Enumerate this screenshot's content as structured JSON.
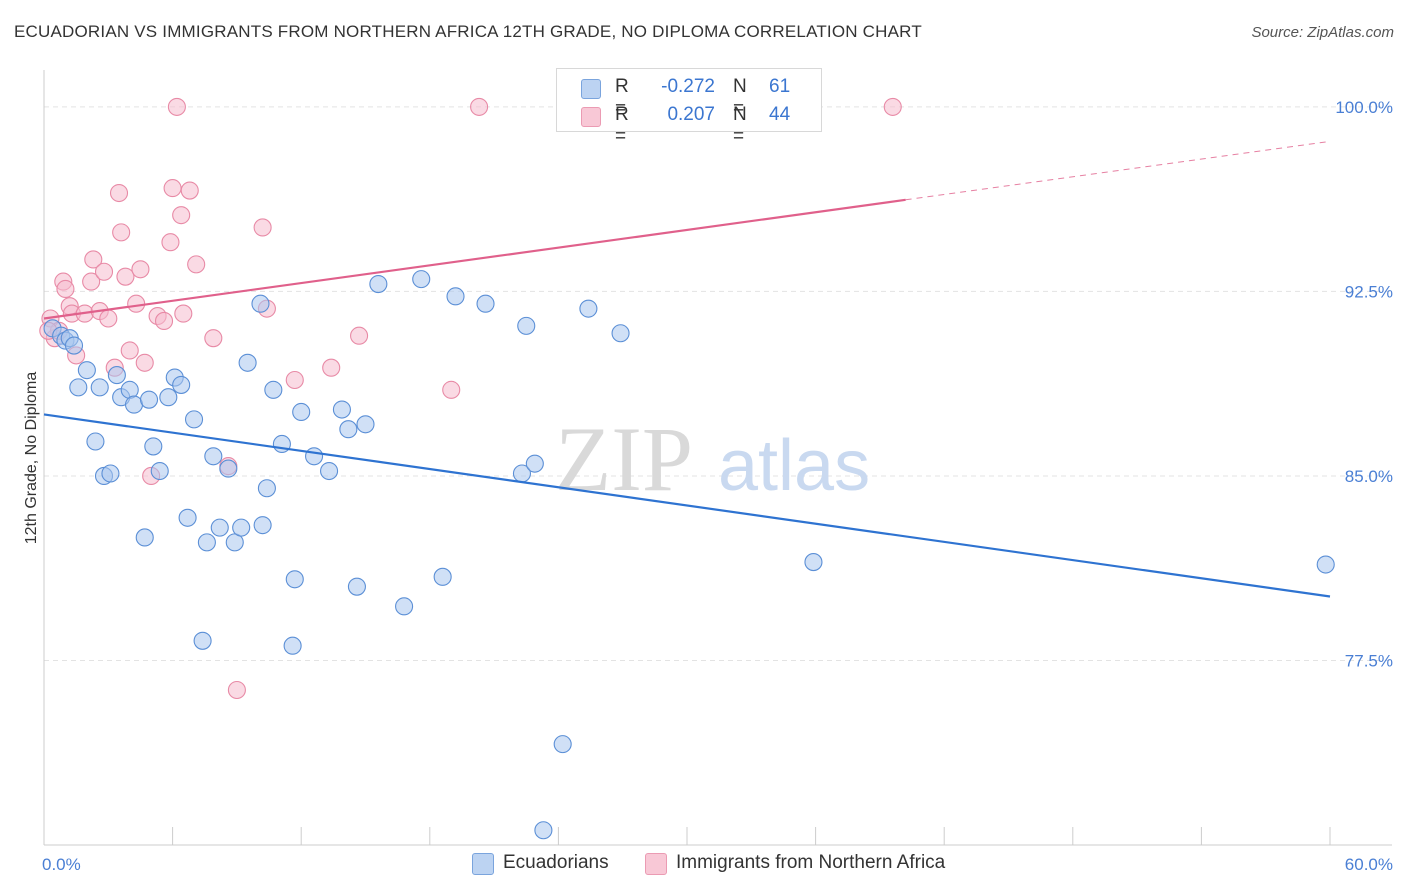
{
  "header": {
    "title": "ECUADORIAN VS IMMIGRANTS FROM NORTHERN AFRICA 12TH GRADE, NO DIPLOMA CORRELATION CHART",
    "source": "Source: ZipAtlas.com"
  },
  "legend": {
    "row1": {
      "r_label": "R =",
      "r_value": "-0.272",
      "n_label": "N =",
      "n_value": "61"
    },
    "row2": {
      "r_label": "R =",
      "r_value": "0.207",
      "n_label": "N =",
      "n_value": "44"
    }
  },
  "bottom_legend": {
    "series1": "Ecuadorians",
    "series2": "Immigrants from Northern Africa"
  },
  "watermark": {
    "zip": "ZIP",
    "atlas": "atlas"
  },
  "colors": {
    "blue_fill": "#a9c6ee",
    "blue_stroke": "#5b8fd6",
    "blue_line": "#2e73d1",
    "pink_fill": "#f6bccd",
    "pink_stroke": "#e88aa6",
    "pink_line": "#e0608b",
    "tick_text": "#4a7fd4"
  },
  "chart_data": {
    "type": "scatter",
    "title": "ECUADORIAN VS IMMIGRANTS FROM NORTHERN AFRICA 12TH GRADE, NO DIPLOMA CORRELATION CHART",
    "xlabel": "",
    "ylabel": "12th Grade, No Diploma",
    "xlim": [
      0,
      60
    ],
    "ylim": [
      70.0,
      101.5
    ],
    "x_tick_labels": {
      "left": "0.0%",
      "right": "60.0%"
    },
    "y_ticks": [
      100.0,
      92.5,
      85.0,
      77.5
    ],
    "y_tick_labels": [
      "100.0%",
      "92.5%",
      "85.0%",
      "77.5%"
    ],
    "grid": true,
    "series": [
      {
        "name": "Ecuadorians",
        "color": "#a9c6ee",
        "R": -0.272,
        "N": 61,
        "trend": {
          "x": [
            0,
            60
          ],
          "y": [
            87.5,
            80.1
          ],
          "dashed_from": null
        },
        "points": [
          [
            0.4,
            91.0
          ],
          [
            0.8,
            90.7
          ],
          [
            1.0,
            90.5
          ],
          [
            1.2,
            90.6
          ],
          [
            1.4,
            90.3
          ],
          [
            1.6,
            88.6
          ],
          [
            2.0,
            89.3
          ],
          [
            2.4,
            86.4
          ],
          [
            2.6,
            88.6
          ],
          [
            2.8,
            85.0
          ],
          [
            3.1,
            85.1
          ],
          [
            3.4,
            89.1
          ],
          [
            3.6,
            88.2
          ],
          [
            4.0,
            88.5
          ],
          [
            4.2,
            87.9
          ],
          [
            4.7,
            82.5
          ],
          [
            4.9,
            88.1
          ],
          [
            5.1,
            86.2
          ],
          [
            5.4,
            85.2
          ],
          [
            5.8,
            88.2
          ],
          [
            6.1,
            89.0
          ],
          [
            6.4,
            88.7
          ],
          [
            6.7,
            83.3
          ],
          [
            7.0,
            87.3
          ],
          [
            7.4,
            78.3
          ],
          [
            7.6,
            82.3
          ],
          [
            7.9,
            85.8
          ],
          [
            8.2,
            82.9
          ],
          [
            8.6,
            85.3
          ],
          [
            8.9,
            82.3
          ],
          [
            9.2,
            82.9
          ],
          [
            9.5,
            89.6
          ],
          [
            10.1,
            92.0
          ],
          [
            10.2,
            83.0
          ],
          [
            10.4,
            84.5
          ],
          [
            10.7,
            88.5
          ],
          [
            11.1,
            86.3
          ],
          [
            11.6,
            78.1
          ],
          [
            11.7,
            80.8
          ],
          [
            12.0,
            87.6
          ],
          [
            12.6,
            85.8
          ],
          [
            13.3,
            85.2
          ],
          [
            13.9,
            87.7
          ],
          [
            14.2,
            86.9
          ],
          [
            14.6,
            80.5
          ],
          [
            15.0,
            87.1
          ],
          [
            15.6,
            92.8
          ],
          [
            16.8,
            79.7
          ],
          [
            17.6,
            93.0
          ],
          [
            18.6,
            80.9
          ],
          [
            19.2,
            92.3
          ],
          [
            20.6,
            92.0
          ],
          [
            22.3,
            85.1
          ],
          [
            22.5,
            91.1
          ],
          [
            22.9,
            85.5
          ],
          [
            23.3,
            70.6
          ],
          [
            24.2,
            74.1
          ],
          [
            25.4,
            91.8
          ],
          [
            26.9,
            90.8
          ],
          [
            35.9,
            81.5
          ],
          [
            59.8,
            81.4
          ]
        ]
      },
      {
        "name": "Immigrants from Northern Africa",
        "color": "#f6bccd",
        "R": 0.207,
        "N": 44,
        "trend": {
          "x": [
            0,
            60
          ],
          "y": [
            91.4,
            98.6
          ],
          "solid_until_x": 40.2
        },
        "points": [
          [
            0.3,
            91.4
          ],
          [
            0.5,
            90.6
          ],
          [
            0.7,
            90.9
          ],
          [
            0.9,
            92.9
          ],
          [
            1.0,
            92.6
          ],
          [
            1.2,
            91.9
          ],
          [
            1.3,
            91.6
          ],
          [
            1.5,
            89.9
          ],
          [
            1.9,
            91.6
          ],
          [
            2.2,
            92.9
          ],
          [
            2.3,
            93.8
          ],
          [
            2.6,
            91.7
          ],
          [
            2.8,
            93.3
          ],
          [
            3.0,
            91.4
          ],
          [
            3.3,
            89.4
          ],
          [
            3.5,
            96.5
          ],
          [
            3.6,
            94.9
          ],
          [
            3.8,
            93.1
          ],
          [
            4.0,
            90.1
          ],
          [
            4.3,
            92.0
          ],
          [
            4.5,
            93.4
          ],
          [
            4.7,
            89.6
          ],
          [
            5.0,
            85.0
          ],
          [
            5.3,
            91.5
          ],
          [
            5.6,
            91.3
          ],
          [
            5.9,
            94.5
          ],
          [
            6.0,
            96.7
          ],
          [
            6.2,
            100.0
          ],
          [
            6.4,
            95.6
          ],
          [
            6.5,
            91.6
          ],
          [
            6.8,
            96.6
          ],
          [
            7.1,
            93.6
          ],
          [
            7.9,
            90.6
          ],
          [
            8.6,
            85.4
          ],
          [
            9.0,
            76.3
          ],
          [
            10.2,
            95.1
          ],
          [
            10.4,
            91.8
          ],
          [
            11.7,
            88.9
          ],
          [
            13.4,
            89.4
          ],
          [
            14.7,
            90.7
          ],
          [
            19.0,
            88.5
          ],
          [
            20.3,
            100.0
          ],
          [
            39.6,
            100.0
          ],
          [
            0.2,
            90.9
          ]
        ]
      }
    ]
  }
}
